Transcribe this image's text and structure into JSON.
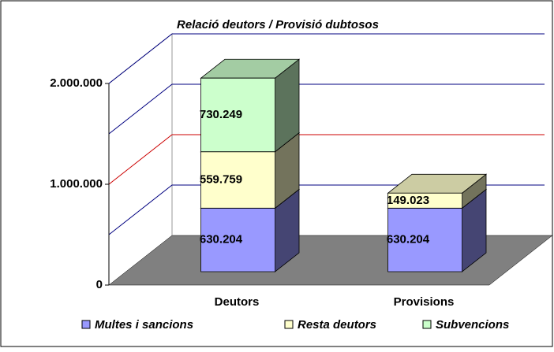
{
  "chart_data": {
    "type": "bar3d_stacked",
    "title": "Relació deutors / Provisió dubtosos",
    "categories": [
      "Deutors",
      "Provisions"
    ],
    "series": [
      {
        "name": "Multes i sancions",
        "color": "#9999ff",
        "values": [
          630204,
          630204
        ],
        "value_labels": [
          "630.204",
          "630.204"
        ]
      },
      {
        "name": "Resta deutors",
        "color": "#ffffcc",
        "values": [
          559759,
          149023
        ],
        "value_labels": [
          "559.759",
          "149.023"
        ]
      },
      {
        "name": "Subvencions",
        "color": "#ccffcc",
        "values": [
          730249,
          null
        ],
        "value_labels": [
          "730.249",
          null
        ]
      }
    ],
    "ylim": [
      0,
      2000000
    ],
    "yticks": [
      {
        "value": 0,
        "label": "0"
      },
      {
        "value": 1000000,
        "label": "1.000.000"
      },
      {
        "value": 2000000,
        "label": "2.000.000"
      }
    ],
    "minor_yticks": [
      500000,
      1500000
    ],
    "grid": true,
    "grid_color": "#000080",
    "major_grid_color": "#cc0000",
    "floor_color": "#808080",
    "legend": "bottom"
  }
}
